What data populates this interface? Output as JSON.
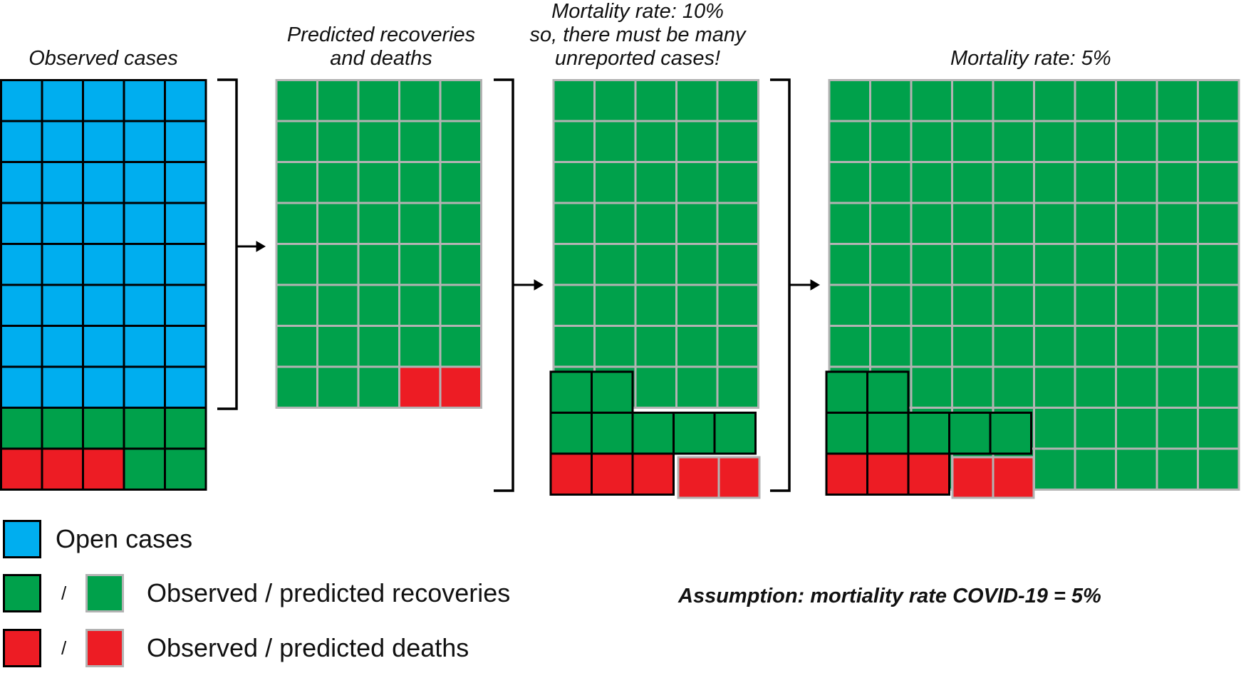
{
  "panels": [
    {
      "title_lines": [
        "Observed cases"
      ]
    },
    {
      "title_lines": [
        "Predicted recoveries",
        "and deaths"
      ]
    },
    {
      "title_lines": [
        "Mortality rate: 10%",
        "so, there must be many",
        "unreported cases!"
      ]
    },
    {
      "title_lines": [
        "Mortality rate: 5%"
      ]
    }
  ],
  "legend": {
    "open": "Open cases",
    "recoveries": "Observed / predicted recoveries",
    "deaths": "Observed / predicted deaths",
    "slash": "/"
  },
  "assumption": "Assumption: mortiality rate COVID-19 = 5%",
  "colors": {
    "open": "#00aeef",
    "recovery": "#00a14b",
    "death": "#ed1c24",
    "observed_border": "#000000",
    "predicted_border": "#b3b3b3"
  }
}
